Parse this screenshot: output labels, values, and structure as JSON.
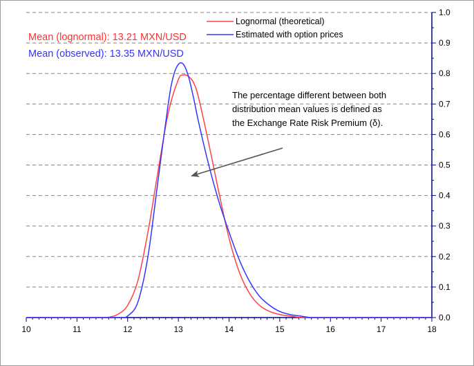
{
  "chart_data": {
    "type": "line",
    "title": "",
    "xlabel": "",
    "ylabel": "",
    "xlim": [
      10,
      18
    ],
    "ylim": [
      0,
      1.0
    ],
    "x_ticks": [
      "10",
      "11",
      "12",
      "13",
      "14",
      "15",
      "16",
      "17",
      "18"
    ],
    "y_ticks": [
      "0.0",
      "0.1",
      "0.2",
      "0.3",
      "0.4",
      "0.5",
      "0.6",
      "0.7",
      "0.8",
      "0.9",
      "1.0"
    ],
    "y_axis_side": "right",
    "grid": "horizontal dashed",
    "legend_position": "top-right",
    "series": [
      {
        "name": "Lognormal (theoretical)",
        "color": "#ff4040",
        "x": [
          11.6,
          11.8,
          12.0,
          12.2,
          12.4,
          12.6,
          12.8,
          13.0,
          13.1,
          13.2,
          13.3,
          13.4,
          13.6,
          13.8,
          14.0,
          14.2,
          14.4,
          14.6,
          14.8,
          15.0,
          15.2,
          15.4
        ],
        "y": [
          0.0,
          0.01,
          0.04,
          0.12,
          0.28,
          0.48,
          0.67,
          0.78,
          0.795,
          0.79,
          0.77,
          0.72,
          0.57,
          0.41,
          0.26,
          0.15,
          0.08,
          0.04,
          0.02,
          0.01,
          0.005,
          0.0
        ]
      },
      {
        "name": "Estimated with option prices",
        "color": "#3333ff",
        "x": [
          11.9,
          12.0,
          12.2,
          12.4,
          12.6,
          12.8,
          12.9,
          13.0,
          13.1,
          13.2,
          13.3,
          13.4,
          13.6,
          13.8,
          14.0,
          14.2,
          14.4,
          14.6,
          14.8,
          15.0,
          15.2,
          15.4,
          15.6
        ],
        "y": [
          0.0,
          0.005,
          0.05,
          0.2,
          0.45,
          0.7,
          0.79,
          0.83,
          0.83,
          0.79,
          0.72,
          0.64,
          0.5,
          0.38,
          0.28,
          0.19,
          0.12,
          0.07,
          0.04,
          0.02,
          0.01,
          0.005,
          0.0
        ]
      }
    ],
    "annotations": {
      "mean_lognormal": "Mean (lognormal): 13.21 MXN/USD",
      "mean_observed": "Mean (observed): 13.35 MXN/USD",
      "note_lines": [
        "The percentage different between both",
        "distribution mean values is defined as",
        "the Exchange Rate Risk Premium (δ)."
      ]
    }
  }
}
